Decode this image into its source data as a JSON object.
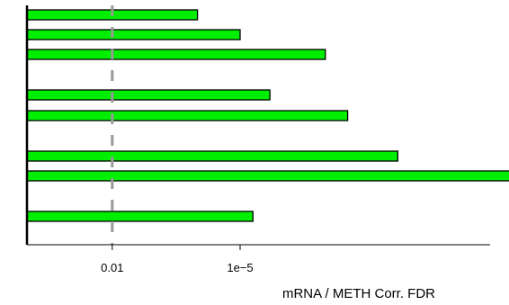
{
  "chart_data": {
    "type": "bar",
    "orientation": "horizontal",
    "xlabel": "mRNA / METH Corr. FDR",
    "x_scale": "-log10",
    "xlim": [
      1,
      1e-15
    ],
    "x_ticks": [
      {
        "value": 0.01,
        "label": "0.01"
      },
      {
        "value": 1e-05,
        "label": "1e−5"
      }
    ],
    "reference_line": {
      "value": 0.01,
      "style": "dashed",
      "color": "#999999"
    },
    "groups": [
      {
        "bars": [
          {
            "value": 0.0001
          },
          {
            "value": 1e-05
          },
          {
            "value": 1e-07
          }
        ]
      },
      {
        "bars": [
          {
            "value": 2e-06
          },
          {
            "value": 3e-08
          }
        ]
      },
      {
        "bars": [
          {
            "value": 2e-09
          },
          {
            "value": 1e-14
          }
        ]
      },
      {
        "bars": [
          {
            "value": 5e-06
          }
        ]
      }
    ],
    "bar_color": "#00ee00",
    "bar_border_color": "#000000",
    "grid": false,
    "legend": "none"
  }
}
